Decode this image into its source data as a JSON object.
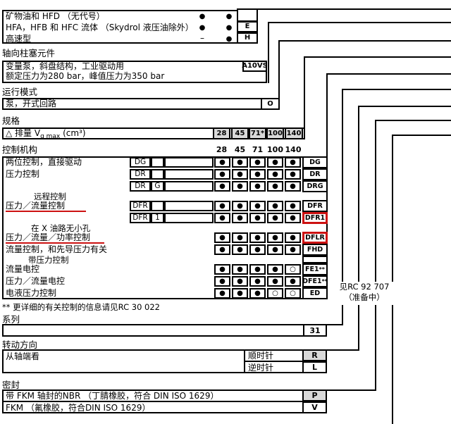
{
  "colors": {
    "line": "#000000",
    "shaded_cell": "#d9d9d9",
    "highlight_red": "#cc1111"
  },
  "fluid": {
    "rows": [
      {
        "label": "矿物油和 HFD （无代号）",
        "col1": "●",
        "col2": "●",
        "code": ""
      },
      {
        "label": "HFA，HFB 和 HFC 流体 （Skydrol 液压油除外）",
        "col1": "●",
        "col2": "●",
        "code": "E"
      },
      {
        "label": "高速型",
        "col1": "–",
        "col2": "●",
        "code": "H"
      }
    ]
  },
  "axial": {
    "header": "轴向柱塞元件",
    "line1": "变量泵，斜盘结构，工业驱动用",
    "line2": "额定压力为280 bar，峰值压力为350 bar",
    "code": "A10VS"
  },
  "mode": {
    "header": "运行模式",
    "label": "泵，开式回路",
    "code": "O"
  },
  "size": {
    "header": "规格",
    "label_prefix": "△ 排量 V",
    "label_sub": "g max",
    "label_suffix": " (cm³)",
    "values": [
      "28",
      "45",
      "71*",
      "100",
      "140"
    ]
  },
  "control": {
    "header": "控制机构",
    "columns": [
      "28",
      "45",
      "71",
      "100",
      "140"
    ],
    "footnote": "** 更详细的有关控制的信息请见RC 30 022",
    "rows": [
      {
        "label": "两位控制，直接驱动",
        "c1": "DG",
        "c2": "",
        "dots": [
          "●",
          "●",
          "●",
          "●",
          "●"
        ],
        "shaded": [
          0,
          0,
          0,
          0,
          0
        ],
        "code": "DG",
        "sup": ""
      },
      {
        "label": "压力控制",
        "c1": "DR",
        "c2": "",
        "dots": [
          "●",
          "●",
          "●",
          "●",
          "●"
        ],
        "shaded": [
          1,
          1,
          1,
          1,
          1
        ],
        "code": "DR",
        "sup": ""
      },
      {
        "label": "",
        "c1": "DR",
        "c2": "G",
        "dots": [
          "●",
          "●",
          "●",
          "●",
          "●"
        ],
        "shaded": [
          0,
          0,
          0,
          0,
          1
        ],
        "code": "DRG",
        "sup": ""
      },
      {
        "label": "远程控制"
      },
      {
        "label": "压力／流量控制",
        "c1": "DFR",
        "c2": "",
        "dots": [
          "●",
          "●",
          "●",
          "●",
          "●"
        ],
        "shaded": [
          1,
          1,
          1,
          1,
          1
        ],
        "code": "DFR",
        "sup": "",
        "red_underline": true
      },
      {
        "label": "",
        "c1": "DFR",
        "c2": "1",
        "dots": [
          "●",
          "●",
          "●",
          "●",
          "●"
        ],
        "shaded": [
          1,
          1,
          1,
          1,
          1
        ],
        "code": "DFR1",
        "sup": "",
        "highlight": true
      },
      {
        "label": "在 X 油路无小孔"
      },
      {
        "label": "压力／流量／功率控制",
        "dots": [
          "●",
          "●",
          "●",
          "●",
          "●"
        ],
        "shaded": [
          1,
          1,
          1,
          1,
          1
        ],
        "code": "DFLR",
        "sup": "",
        "highlight": true,
        "red_underline": true
      },
      {
        "label": "流量控制，和先导压力有关",
        "dots": [
          "●",
          "●",
          "●",
          "●",
          "●"
        ],
        "shaded": [
          0,
          0,
          0,
          0,
          0
        ],
        "code": "FHD",
        "sup": ""
      },
      {
        "label": "带压力控制"
      },
      {
        "label": "流量电控",
        "dots": [
          "●",
          "●",
          "●",
          "●",
          "○"
        ],
        "shaded": [
          0,
          0,
          0,
          0,
          0
        ],
        "code": "FE1",
        "sup": "**"
      },
      {
        "label": "压力／流量电控",
        "dots": [
          "●",
          "●",
          "●",
          "●",
          "●"
        ],
        "shaded": [
          0,
          0,
          0,
          0,
          0
        ],
        "code": "DFE1",
        "sup": "**"
      },
      {
        "label": "电液压力控制",
        "dots": [
          "●",
          "●",
          "●",
          "○",
          "○"
        ],
        "shaded": [
          0,
          0,
          0,
          0,
          0
        ],
        "code": "ED",
        "sup": ""
      }
    ]
  },
  "series": {
    "header": "系列",
    "code": "31"
  },
  "rotation": {
    "header": "转动方向",
    "label": "从轴端看",
    "cw_label": "顺时针",
    "cw_code": "R",
    "ccw_label": "逆时针",
    "ccw_code": "L"
  },
  "seal": {
    "header": "密封",
    "rows": [
      {
        "label": "带 FKM 轴封的NBR （丁腈橡胶，符合 DIN ISO 1629）",
        "code": "P"
      },
      {
        "label": "FKM （氟橡胶，符合DIN ISO 1629）",
        "code": "V"
      }
    ]
  },
  "side_note": {
    "line1": "见RC 92 707",
    "line2": "（准备中）"
  }
}
